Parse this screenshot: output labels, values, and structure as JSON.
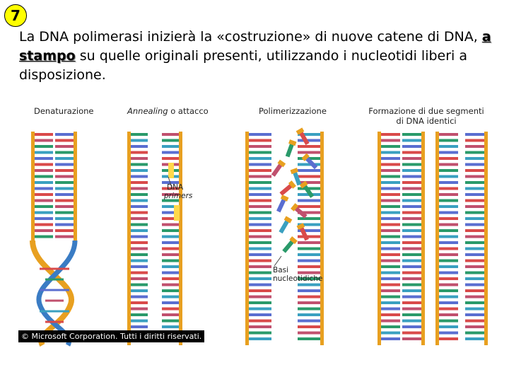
{
  "slide": {
    "number": "7",
    "text_before": "La DNA polimerasi inizierà la «costruzione» di nuove catene di DNA, ",
    "text_bold": "a stampo",
    "text_after": " su quelle originali presenti, utilizzando i nucleotidi liberi a disposizione."
  },
  "figure": {
    "panel1_title": "Denaturazione",
    "panel2_title_italic": "Annealing",
    "panel2_title_rest": " o attacco",
    "panel3_title": "Polimerizzazione",
    "panel4_title_line1": "Formazione di due segmenti",
    "panel4_title_line2": "di DNA identici",
    "primers_label_line1": "DNA",
    "primers_label_line2": "primers",
    "bases_label_line1": "Basi",
    "bases_label_line2": "nucleotidiche",
    "copyright": "© Microsoft Corporation. Tutti i diritti riservati."
  },
  "colors": {
    "backbone": "#e8a020",
    "strand_blue": "#3a7cc4",
    "base_colors": [
      "#d94a4a",
      "#2a9a6a",
      "#5a6ed0",
      "#c0506e",
      "#3aa0c0"
    ]
  }
}
